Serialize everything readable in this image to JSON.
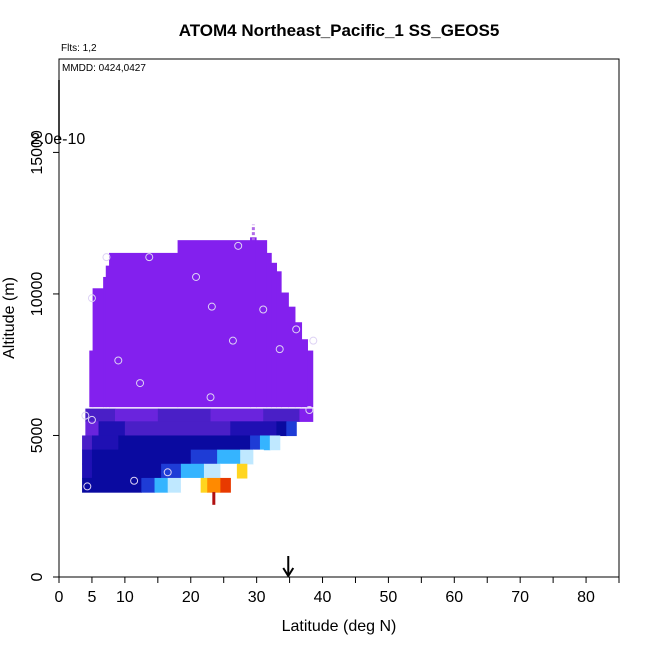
{
  "chart_data": {
    "type": "heatmap",
    "title": "ATOM4 Northeast_Pacific_1 SS_GEOS5",
    "flights_label": "Flts: 1,2",
    "dates_label": "MMDD: 0424,0427",
    "scale_label": "2.0e-10",
    "xlabel": "Latitude (deg N)",
    "ylabel": "Altitude (m)",
    "xlim": [
      0,
      85
    ],
    "ylim": [
      0,
      18300
    ],
    "x_tick_labels": [
      "0",
      "5",
      "10",
      "20",
      "30",
      "40",
      "50",
      "60",
      "70",
      "80"
    ],
    "x_tick_values": [
      0,
      5,
      10,
      20,
      30,
      40,
      50,
      60,
      70,
      80
    ],
    "x_minor_ticks": [
      15,
      25,
      35,
      45,
      55,
      65,
      75,
      85
    ],
    "y_tick_labels": [
      "0",
      "5000",
      "10000",
      "15000"
    ],
    "y_tick_values": [
      0,
      5000,
      10000,
      15000
    ],
    "arrow_latitude": 34.8,
    "colors": {
      "purple": "#8320ee",
      "violet": "#6a24dd",
      "indigo": "#4a1fc7",
      "navy": "#1f10b3",
      "darkblue": "#0a0aa0",
      "blue": "#1e3cd6",
      "lightblue": "#35b4ff",
      "paleblue": "#bfe8ff",
      "white": "#ffffff",
      "yellow": "#ffd520",
      "orange": "#ff8a00",
      "red": "#e83a00",
      "darkred": "#b01010"
    },
    "column_tops": [
      {
        "x0": 4.0,
        "x1": 4.6,
        "top": 6000
      },
      {
        "x0": 4.6,
        "x1": 5.1,
        "top": 8000
      },
      {
        "x0": 5.1,
        "x1": 6.7,
        "top": 10200
      },
      {
        "x0": 6.7,
        "x1": 7.1,
        "top": 10600
      },
      {
        "x0": 7.1,
        "x1": 7.6,
        "top": 11000
      },
      {
        "x0": 7.6,
        "x1": 18.0,
        "top": 11450
      },
      {
        "x0": 18.0,
        "x1": 29.0,
        "top": 11900
      },
      {
        "x0": 29.0,
        "x1": 29.9,
        "top": 12000
      },
      {
        "x0": 29.9,
        "x1": 31.5,
        "top": 11900
      },
      {
        "x0": 31.5,
        "x1": 32.2,
        "top": 11450
      },
      {
        "x0": 32.2,
        "x1": 33.0,
        "top": 11100
      },
      {
        "x0": 33.0,
        "x1": 33.7,
        "top": 10800
      },
      {
        "x0": 33.7,
        "x1": 34.8,
        "top": 10050
      },
      {
        "x0": 34.8,
        "x1": 35.8,
        "top": 9550
      },
      {
        "x0": 35.8,
        "x1": 36.8,
        "top": 9000
      },
      {
        "x0": 36.8,
        "x1": 37.7,
        "top": 8400
      },
      {
        "x0": 37.7,
        "x1": 38.5,
        "top": 8000
      }
    ],
    "purple_bottom": 6000,
    "upper_bands": [
      {
        "y0": 5950,
        "y1": 5500,
        "x0": 4.0,
        "x1": 38.5,
        "segments": [
          [
            4.0,
            8.5,
            "indigo"
          ],
          [
            8.5,
            15.0,
            "violet"
          ],
          [
            15.0,
            23.0,
            "indigo"
          ],
          [
            23.0,
            31.0,
            "violet"
          ],
          [
            31.0,
            36.5,
            "indigo"
          ],
          [
            36.5,
            38.5,
            "purple"
          ]
        ]
      },
      {
        "y0": 5500,
        "y1": 5000,
        "x0": 4.0,
        "x1": 36.0,
        "segments": [
          [
            4.0,
            6.0,
            "violet"
          ],
          [
            6.0,
            10.0,
            "navy"
          ],
          [
            10.0,
            26.0,
            "indigo"
          ],
          [
            26.0,
            33.0,
            "navy"
          ],
          [
            33.0,
            34.5,
            "darkblue"
          ],
          [
            34.5,
            36.0,
            "blue"
          ]
        ]
      }
    ],
    "lower_bands": [
      {
        "y0": 5000,
        "y1": 4500,
        "x0": 3.5,
        "x1": 33.5,
        "segments": [
          [
            3.5,
            5.0,
            "indigo"
          ],
          [
            5.0,
            9.0,
            "navy"
          ],
          [
            9.0,
            29.0,
            "darkblue"
          ],
          [
            29.0,
            30.5,
            "blue"
          ],
          [
            30.5,
            32.0,
            "lightblue"
          ],
          [
            32.0,
            33.5,
            "paleblue"
          ]
        ]
      },
      {
        "y0": 4500,
        "y1": 4000,
        "x0": 3.5,
        "x1": 31.0,
        "segments": [
          [
            3.5,
            5.0,
            "navy"
          ],
          [
            5.0,
            20.0,
            "darkblue"
          ],
          [
            20.0,
            24.0,
            "blue"
          ],
          [
            24.0,
            27.5,
            "lightblue"
          ],
          [
            27.5,
            29.5,
            "paleblue"
          ],
          [
            29.5,
            31.0,
            "white"
          ]
        ]
      },
      {
        "y0": 4000,
        "y1": 3500,
        "x0": 3.5,
        "x1": 28.5,
        "segments": [
          [
            3.5,
            5.0,
            "navy"
          ],
          [
            5.0,
            15.5,
            "darkblue"
          ],
          [
            15.5,
            18.5,
            "blue"
          ],
          [
            18.5,
            22.0,
            "lightblue"
          ],
          [
            22.0,
            24.5,
            "paleblue"
          ],
          [
            24.5,
            27.0,
            "white"
          ],
          [
            27.0,
            28.5,
            "yellow"
          ]
        ]
      },
      {
        "y0": 3500,
        "y1": 3000,
        "x0": 3.5,
        "x1": 26.0,
        "segments": [
          [
            3.5,
            12.5,
            "darkblue"
          ],
          [
            12.5,
            14.5,
            "blue"
          ],
          [
            14.5,
            16.5,
            "lightblue"
          ],
          [
            16.5,
            18.5,
            "paleblue"
          ],
          [
            18.5,
            21.5,
            "white"
          ],
          [
            21.5,
            22.5,
            "yellow"
          ],
          [
            22.5,
            24.5,
            "orange"
          ],
          [
            24.5,
            26.0,
            "red"
          ]
        ]
      }
    ],
    "red_stub": {
      "x": 23.5,
      "y0": 3000,
      "y1": 2550
    },
    "top_spike": {
      "x": 29.5,
      "y0": 11900,
      "y1": 12450
    },
    "sample_points": [
      {
        "lat": 4.3,
        "alt": 3200
      },
      {
        "lat": 4.0,
        "alt": 5700
      },
      {
        "lat": 5.0,
        "alt": 5550
      },
      {
        "lat": 5.0,
        "alt": 9850
      },
      {
        "lat": 7.2,
        "alt": 11300
      },
      {
        "lat": 9.0,
        "alt": 7650
      },
      {
        "lat": 11.4,
        "alt": 3400
      },
      {
        "lat": 12.3,
        "alt": 6850
      },
      {
        "lat": 13.7,
        "alt": 11300
      },
      {
        "lat": 16.5,
        "alt": 3700
      },
      {
        "lat": 20.8,
        "alt": 10600
      },
      {
        "lat": 23.0,
        "alt": 6350
      },
      {
        "lat": 23.2,
        "alt": 9550
      },
      {
        "lat": 26.4,
        "alt": 8350
      },
      {
        "lat": 27.2,
        "alt": 11700
      },
      {
        "lat": 31.0,
        "alt": 9450
      },
      {
        "lat": 33.5,
        "alt": 8050
      },
      {
        "lat": 36.0,
        "alt": 8750
      },
      {
        "lat": 38.0,
        "alt": 5900
      },
      {
        "lat": 38.6,
        "alt": 8350
      }
    ]
  }
}
